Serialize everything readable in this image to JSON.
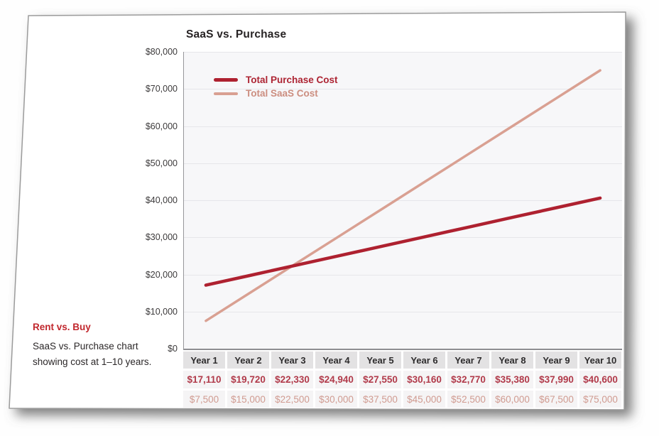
{
  "page": {
    "title": "SaaS vs. Purchase",
    "caption_heading": "Rent vs. Buy",
    "caption_lines": [
      "SaaS vs. Purchase chart",
      "showing cost at 1–10 years."
    ]
  },
  "colors": {
    "purchase_line": "#ae2130",
    "purchase_legend_text": "#ad2433",
    "purchase_table_text": "#b13a4a",
    "saas_line": "#d9a092",
    "saas_legend_text": "#cc8e80",
    "saas_table_text": "#d09b91",
    "accent_red": "#c1272d",
    "plot_background": "#f7f7f9",
    "gridline": "#e6e6ea",
    "axis": "#96969a",
    "table_header_background": "#e3e2e3",
    "table_cell_background": "#f5f4f5"
  },
  "chart_data": {
    "type": "line",
    "title": "SaaS vs. Purchase",
    "categories": [
      "Year 1",
      "Year 2",
      "Year 3",
      "Year 4",
      "Year 5",
      "Year 6",
      "Year 7",
      "Year 8",
      "Year 9",
      "Year 10"
    ],
    "series": [
      {
        "name": "Total Purchase Cost",
        "color": "#ae2130",
        "stroke_width": 4.5,
        "values": [
          17110,
          19720,
          22330,
          24940,
          27550,
          30160,
          32770,
          35380,
          37990,
          40600
        ]
      },
      {
        "name": "Total SaaS Cost",
        "color": "#d9a092",
        "stroke_width": 3.5,
        "values": [
          7500,
          15000,
          22500,
          30000,
          37500,
          45000,
          52500,
          60000,
          67500,
          75000
        ]
      }
    ],
    "ylim": [
      0,
      80000
    ],
    "ytick_step": 10000,
    "ytick_labels": [
      "$80,000",
      "$70,000",
      "$60,000",
      "$50,000",
      "$40,000",
      "$30,000",
      "$20,000",
      "$10,000",
      "$0"
    ],
    "grid": true,
    "legend_position": "top-left"
  },
  "table": {
    "header": [
      "Year 1",
      "Year 2",
      "Year 3",
      "Year 4",
      "Year 5",
      "Year 6",
      "Year 7",
      "Year 8",
      "Year 9",
      "Year 10"
    ],
    "rows": [
      {
        "name": "Total Purchase Cost",
        "cells": [
          "$17,110",
          "$19,720",
          "$22,330",
          "$24,940",
          "$27,550",
          "$30,160",
          "$32,770",
          "$35,380",
          "$37,990",
          "$40,600"
        ]
      },
      {
        "name": "Total SaaS Cost",
        "cells": [
          "$7,500",
          "$15,000",
          "$22,500",
          "$30,000",
          "$37,500",
          "$45,000",
          "$52,500",
          "$60,000",
          "$67,500",
          "$75,000"
        ]
      }
    ]
  }
}
